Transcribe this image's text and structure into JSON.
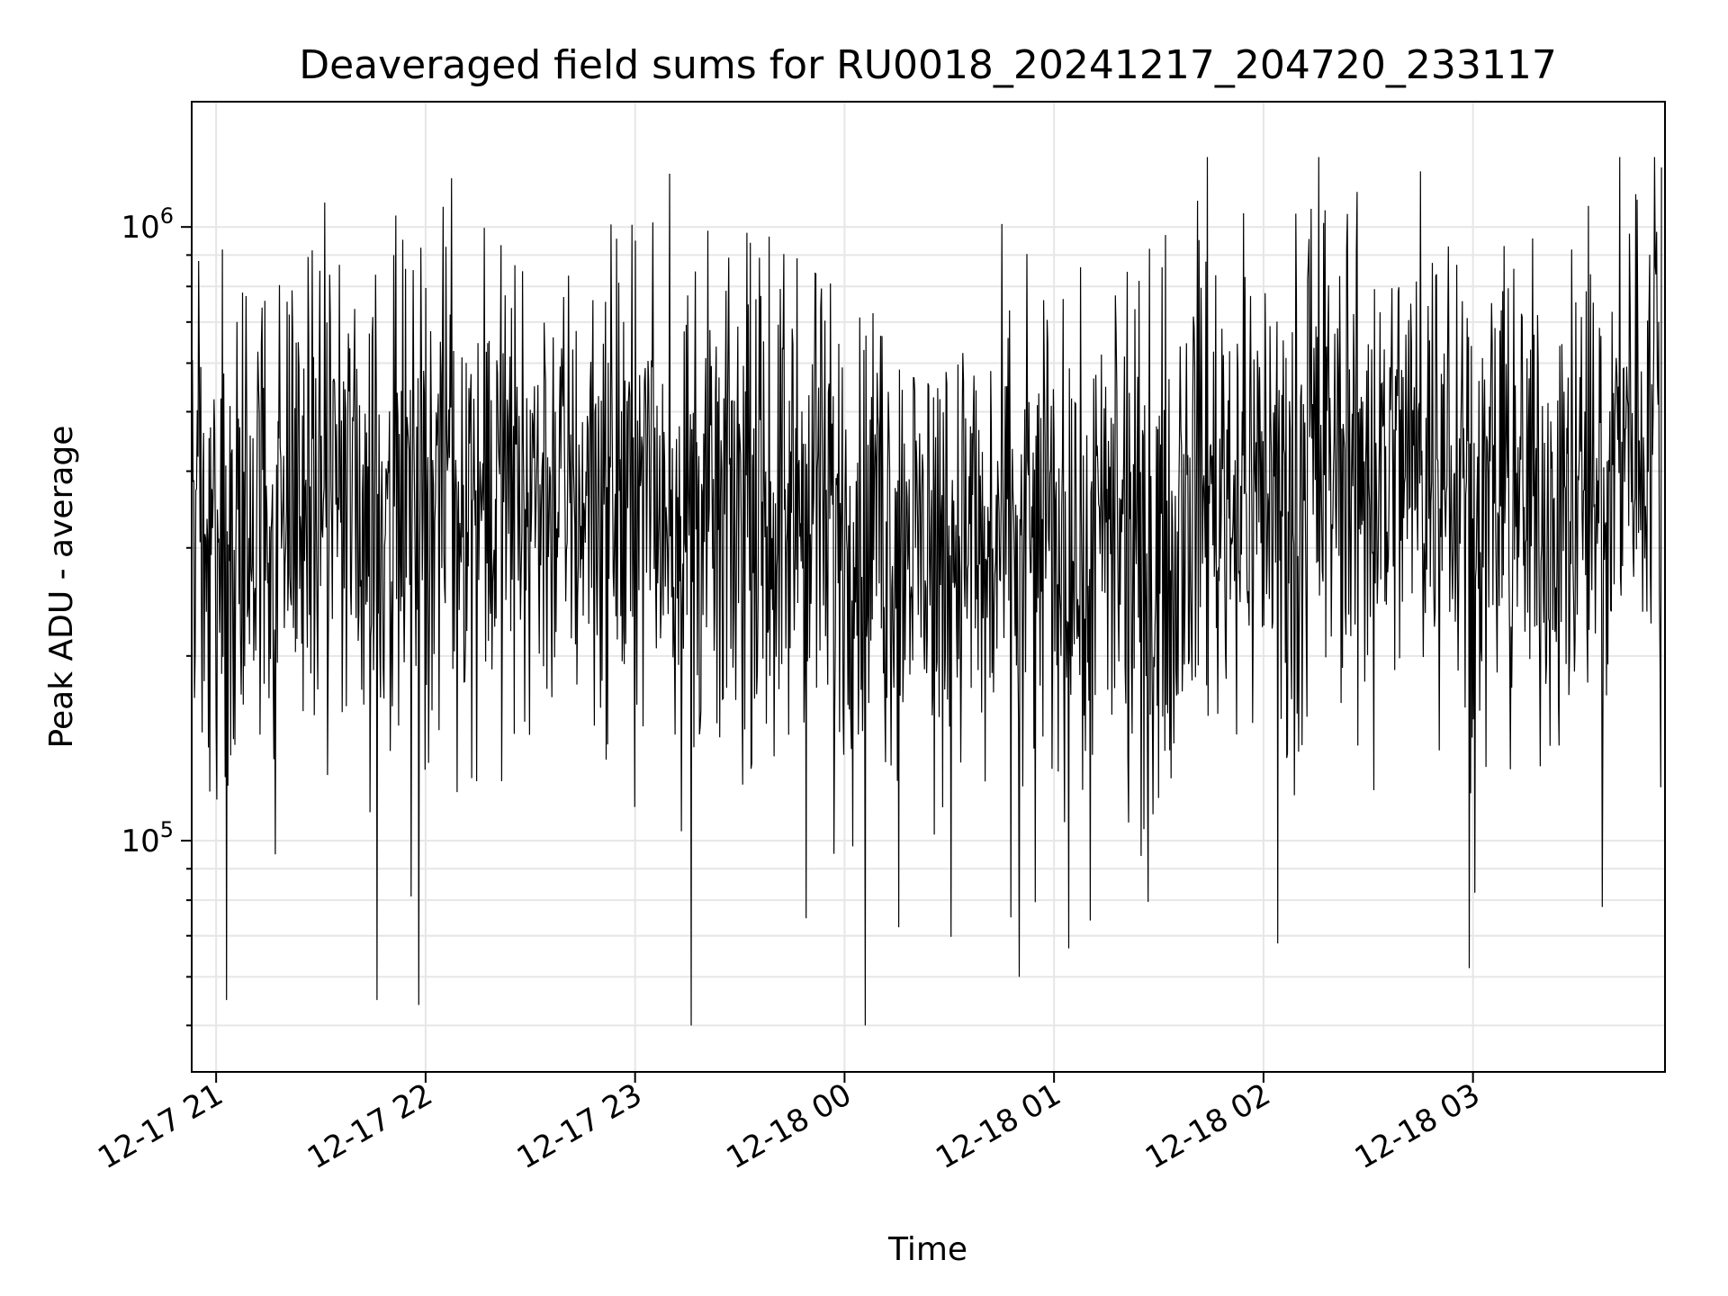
{
  "chart_data": {
    "type": "line",
    "title": "Deaveraged field sums for RU0018_20241217_204720_233117",
    "xlabel": "Time",
    "ylabel": "Peak ADU - average",
    "x_scale": "time",
    "y_scale": "log",
    "xlim": [
      "2024-12-17 20:53",
      "2024-12-18 03:55"
    ],
    "ylim": [
      42000,
      1600000
    ],
    "grid": true,
    "legend": "none",
    "x_ticks": [
      {
        "value": "2024-12-17 21:00",
        "label": "12-17 21"
      },
      {
        "value": "2024-12-17 22:00",
        "label": "12-17 22"
      },
      {
        "value": "2024-12-17 23:00",
        "label": "12-17 23"
      },
      {
        "value": "2024-12-18 00:00",
        "label": "12-18 00"
      },
      {
        "value": "2024-12-18 01:00",
        "label": "12-18 01"
      },
      {
        "value": "2024-12-18 02:00",
        "label": "12-18 02"
      },
      {
        "value": "2024-12-18 03:00",
        "label": "12-18 03"
      }
    ],
    "y_ticks": [
      {
        "value": 100000,
        "base": "10",
        "exp": "5"
      },
      {
        "value": 1000000,
        "base": "10",
        "exp": "6"
      }
    ],
    "series": [
      {
        "color": "#000000",
        "x": [
          "2024-12-17 20:53",
          "2024-12-17 20:55",
          "2024-12-17 21:03",
          "2024-12-17 21:06",
          "2024-12-17 21:17",
          "2024-12-17 21:21",
          "2024-12-17 21:30",
          "2024-12-17 21:46",
          "2024-12-17 21:49",
          "2024-12-17 21:58",
          "2024-12-17 22:07",
          "2024-12-17 22:09",
          "2024-12-17 22:21",
          "2024-12-17 22:31",
          "2024-12-17 22:48",
          "2024-12-17 22:54",
          "2024-12-17 23:00",
          "2024-12-17 23:16",
          "2024-12-17 23:25",
          "2024-12-17 23:46",
          "2024-12-17 23:55",
          "2024-12-18 00:06",
          "2024-12-18 00:09",
          "2024-12-18 00:25",
          "2024-12-18 00:34",
          "2024-12-18 00:50",
          "2024-12-18 00:57",
          "2024-12-18 01:09",
          "2024-12-18 01:15",
          "2024-12-18 01:28",
          "2024-12-18 01:34",
          "2024-12-18 01:44",
          "2024-12-18 01:57",
          "2024-12-18 02:04",
          "2024-12-18 02:08",
          "2024-12-18 02:24",
          "2024-12-18 02:36",
          "2024-12-18 02:53",
          "2024-12-18 02:59",
          "2024-12-18 03:10",
          "2024-12-18 03:23",
          "2024-12-18 03:37",
          "2024-12-18 03:42",
          "2024-12-18 03:54"
        ],
        "values": [
          300000,
          880000,
          55000,
          700000,
          95000,
          720000,
          260000,
          55000,
          360000,
          54000,
          720000,
          120000,
          420000,
          420000,
          760000,
          250000,
          950000,
          50000,
          170000,
          470000,
          250000,
          50000,
          420000,
          160000,
          560000,
          60000,
          760000,
          140000,
          330000,
          240000,
          330000,
          1300000,
          250000,
          68000,
          170000,
          1050000,
          380000,
          930000,
          62000,
          390000,
          360000,
          78000,
          1300000,
          1250000
        ]
      }
    ],
    "noise": {
      "points_per_hour": 300,
      "log10_spread": 0.34,
      "floor": 50000,
      "ceiling": 1300000
    }
  }
}
